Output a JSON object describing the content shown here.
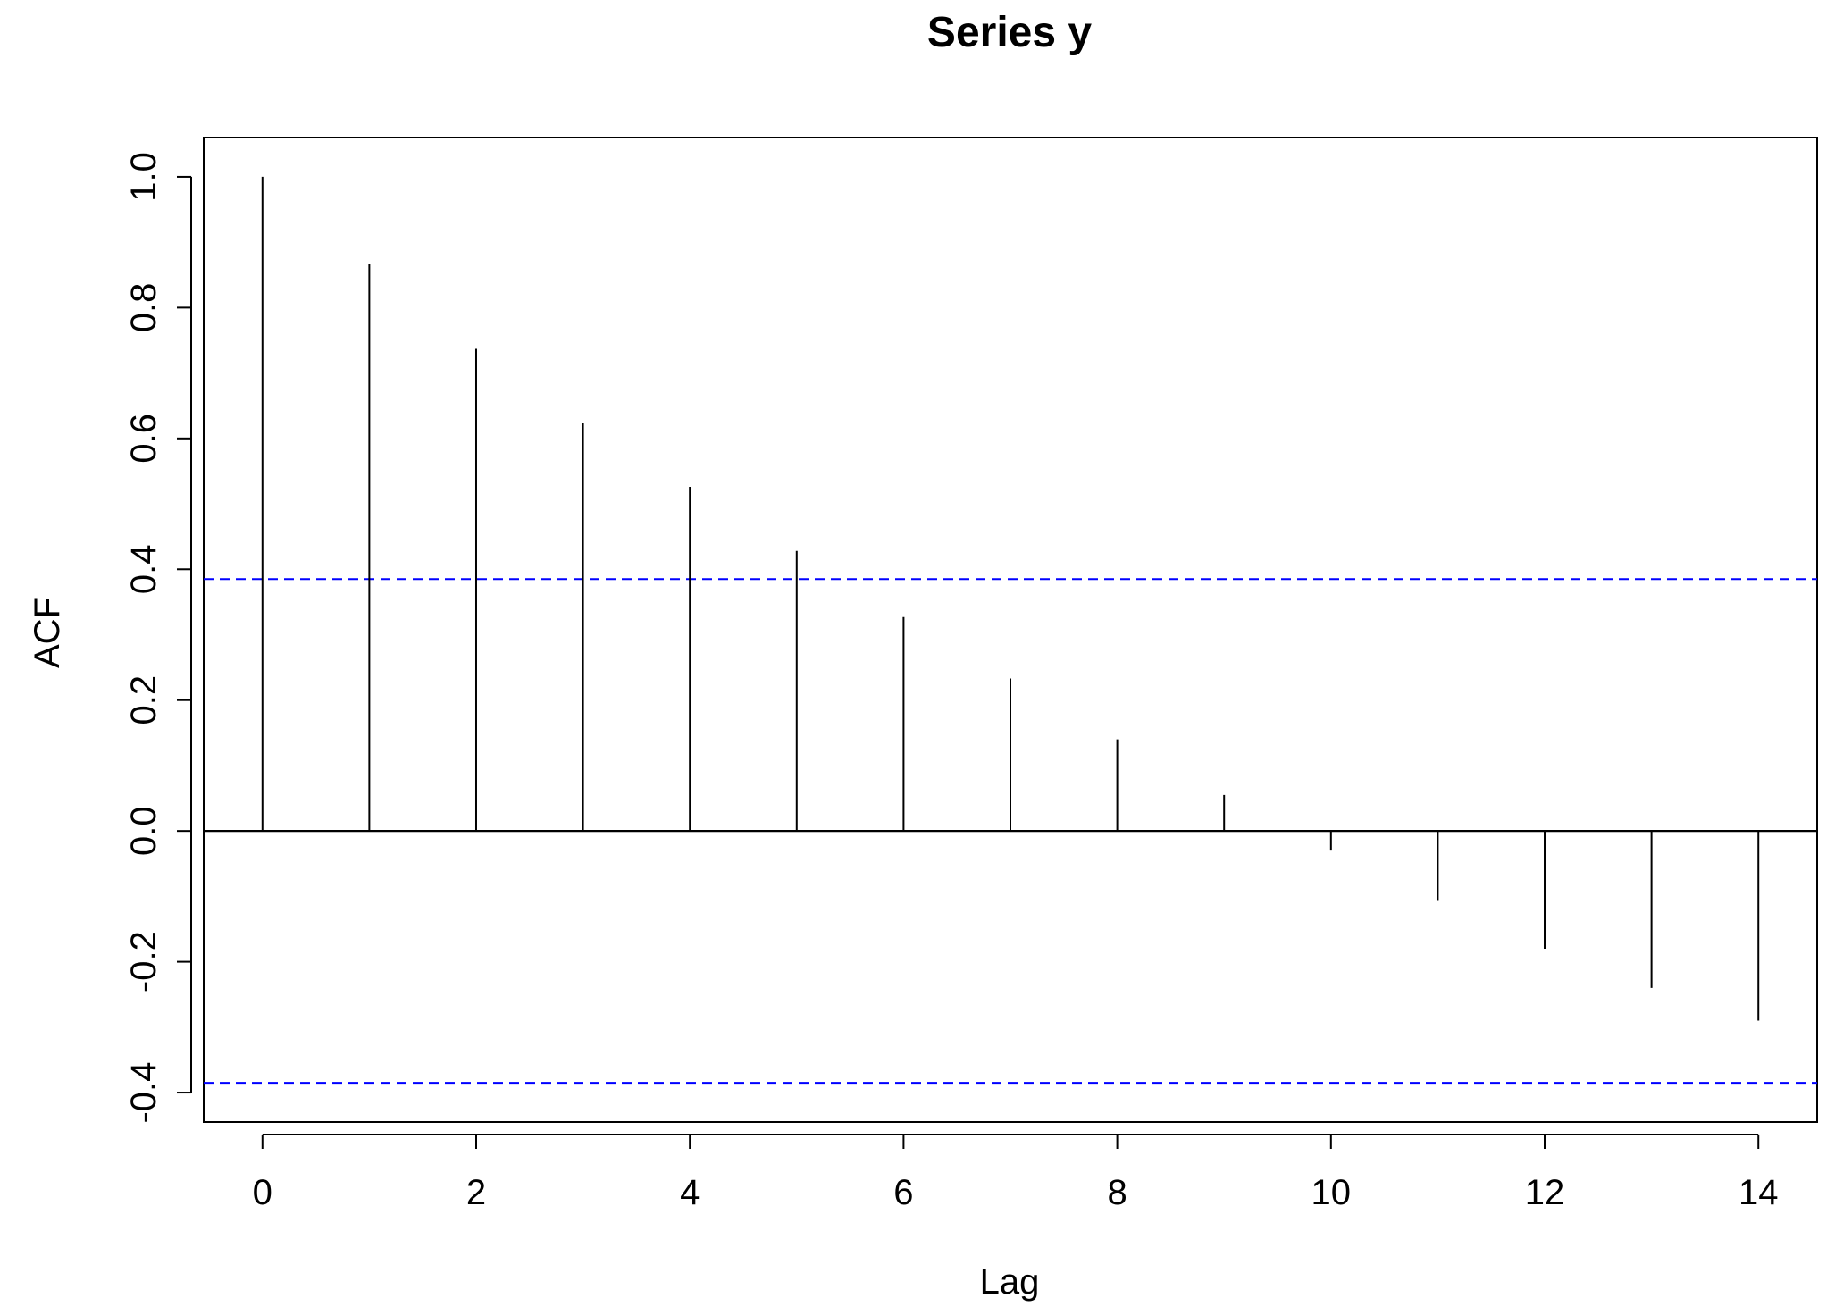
{
  "chart_data": {
    "type": "bar",
    "title": "Series  y",
    "xlabel": "Lag",
    "ylabel": "ACF",
    "x": [
      0,
      1,
      2,
      3,
      4,
      5,
      6,
      7,
      8,
      9,
      10,
      11,
      12,
      13,
      14
    ],
    "values": [
      1.0,
      0.867,
      0.737,
      0.624,
      0.526,
      0.428,
      0.327,
      0.233,
      0.14,
      0.055,
      -0.03,
      -0.107,
      -0.18,
      -0.24,
      -0.29
    ],
    "xlim": [
      -0.55,
      14.55
    ],
    "ylim": [
      -0.445,
      1.06
    ],
    "xticks": [
      0,
      2,
      4,
      6,
      8,
      10,
      12,
      14
    ],
    "yticks": [
      -0.4,
      -0.2,
      0.0,
      0.2,
      0.4,
      0.6,
      0.8,
      1.0
    ],
    "xtick_labels": [
      "0",
      "2",
      "4",
      "6",
      "8",
      "10",
      "12",
      "14"
    ],
    "ytick_labels": [
      "-0.4",
      "-0.2",
      "0.0",
      "0.2",
      "0.4",
      "0.6",
      "0.8",
      "1.0"
    ],
    "confidence_bounds": [
      0.385,
      -0.385
    ],
    "zero_line": 0,
    "grid": false,
    "legend": "none",
    "colors": {
      "bars": "#000000",
      "confidence": "#0000ff",
      "axes": "#000000"
    }
  }
}
